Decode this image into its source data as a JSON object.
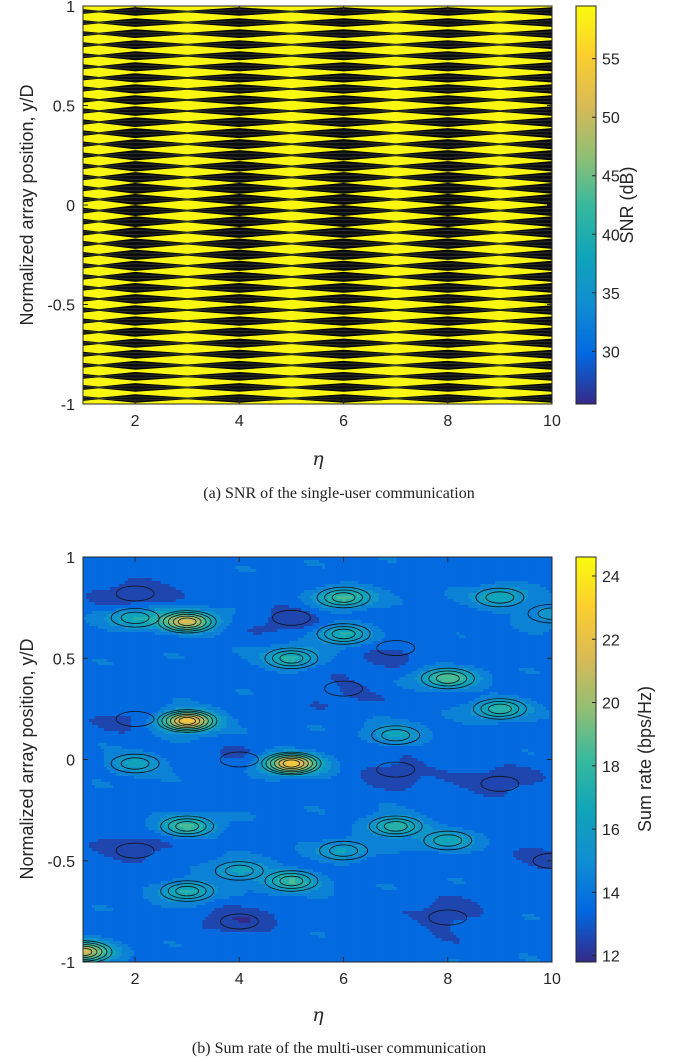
{
  "chart_data": [
    {
      "type": "heatmap",
      "subtype": "filled-contour",
      "caption": "(a) SNR of the single-user communication",
      "xlabel": "η",
      "ylabel": "Normalized array position, y/D",
      "xlim": [
        1,
        10
      ],
      "ylim": [
        -1,
        1
      ],
      "xticks": [
        2,
        4,
        6,
        8,
        10
      ],
      "yticks": [
        -1,
        -0.5,
        0,
        0.5,
        1
      ],
      "ytick_labels": [
        "-1",
        "-0.5",
        "0",
        "0.5",
        "1"
      ],
      "colorbar": {
        "label": "SNR (dB)",
        "range": [
          25.5,
          59.5
        ],
        "ticks": [
          30,
          35,
          40,
          45,
          50,
          55
        ],
        "colormap": "parula"
      },
      "pattern": {
        "background_db": 59,
        "trough_db": 26,
        "band_count": 36,
        "node_columns_eta": [
          2,
          4,
          6,
          8,
          10
        ]
      }
    },
    {
      "type": "heatmap",
      "subtype": "filled-contour",
      "caption": "(b) Sum rate of the multi-user communication",
      "xlabel": "η",
      "ylabel": "Normalized array position, y/D",
      "xlim": [
        1,
        10
      ],
      "ylim": [
        -1,
        1
      ],
      "xticks": [
        2,
        4,
        6,
        8,
        10
      ],
      "yticks": [
        -1,
        -0.5,
        0,
        0.5,
        1
      ],
      "ytick_labels": [
        "-1",
        "-0.5",
        "0",
        "0.5",
        "1"
      ],
      "colorbar": {
        "label": "Sum rate (bps/Hz)",
        "range": [
          11.8,
          24.6
        ],
        "ticks": [
          12,
          14,
          16,
          18,
          20,
          22,
          24
        ],
        "colormap": "parula"
      },
      "hotspots": [
        {
          "eta": 3,
          "y": 0.19,
          "value": 23
        },
        {
          "eta": 5,
          "y": -0.02,
          "value": 22.5
        },
        {
          "eta": 3,
          "y": 0.68,
          "value": 21
        },
        {
          "eta": 1,
          "y": -0.95,
          "value": 21
        },
        {
          "eta": 6,
          "y": 0.8,
          "value": 18.5
        },
        {
          "eta": 8,
          "y": 0.4,
          "value": 18.5
        },
        {
          "eta": 7,
          "y": -0.33,
          "value": 18
        },
        {
          "eta": 5,
          "y": -0.6,
          "value": 18
        },
        {
          "eta": 3,
          "y": -0.33,
          "value": 18
        },
        {
          "eta": 6,
          "y": 0.62,
          "value": 17.5
        },
        {
          "eta": 5,
          "y": 0.5,
          "value": 17.5
        },
        {
          "eta": 9,
          "y": 0.25,
          "value": 17.5
        },
        {
          "eta": 3,
          "y": -0.65,
          "value": 17.5
        },
        {
          "eta": 2,
          "y": 0.7,
          "value": 17
        },
        {
          "eta": 9,
          "y": 0.8,
          "value": 17
        },
        {
          "eta": 4,
          "y": -0.55,
          "value": 16.5
        },
        {
          "eta": 2,
          "y": -0.02,
          "value": 16.5
        },
        {
          "eta": 7,
          "y": 0.12,
          "value": 16.5
        },
        {
          "eta": 8,
          "y": -0.4,
          "value": 16.5
        },
        {
          "eta": 6,
          "y": -0.45,
          "value": 16
        },
        {
          "eta": 10,
          "y": 0.72,
          "value": 16
        }
      ],
      "lowspots": [
        {
          "eta": 2,
          "y": 0.82,
          "value": 12.3
        },
        {
          "eta": 5,
          "y": 0.7,
          "value": 12.5
        },
        {
          "eta": 4,
          "y": -0.8,
          "value": 12.3
        },
        {
          "eta": 8,
          "y": -0.78,
          "value": 12.5
        },
        {
          "eta": 7,
          "y": 0.55,
          "value": 12.8
        },
        {
          "eta": 7,
          "y": -0.05,
          "value": 12.5
        },
        {
          "eta": 9,
          "y": -0.12,
          "value": 12.5
        },
        {
          "eta": 2,
          "y": 0.2,
          "value": 12.8
        },
        {
          "eta": 2,
          "y": -0.45,
          "value": 12.6
        },
        {
          "eta": 10,
          "y": -0.5,
          "value": 12.8
        },
        {
          "eta": 6,
          "y": 0.35,
          "value": 12.8
        },
        {
          "eta": 4,
          "y": 0.0,
          "value": 13
        }
      ]
    }
  ]
}
